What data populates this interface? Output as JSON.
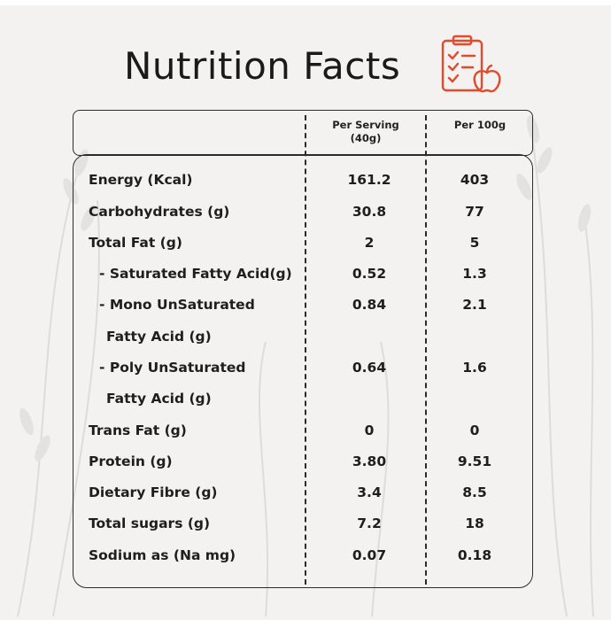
{
  "title": "Nutrition Facts",
  "icons": {
    "title_icon": "checklist-apple-icon"
  },
  "colors": {
    "accent": "#e14a2b",
    "background": "#f3f2f0",
    "line": "#2b2b2b"
  },
  "columns": {
    "per_serving_line1": "Per Serving",
    "per_serving_line2": "(40g)",
    "per_100g": "Per 100g"
  },
  "rows": [
    {
      "label": "Energy (Kcal)",
      "serving": "161.2",
      "per100": "403"
    },
    {
      "label": "Carbohydrates (g)",
      "serving": "30.8",
      "per100": "77"
    },
    {
      "label": "Total Fat (g)",
      "serving": "2",
      "per100": "5"
    },
    {
      "label": "- Saturated Fatty Acid(g)",
      "serving": "0.52",
      "per100": "1.3"
    },
    {
      "label": "- Mono UnSaturated",
      "label2": "Fatty Acid (g)",
      "serving": "0.84",
      "per100": "2.1"
    },
    {
      "label": "- Poly UnSaturated",
      "label2": "Fatty Acid (g)",
      "serving": "0.64",
      "per100": "1.6"
    },
    {
      "label": "Trans Fat (g)",
      "serving": "0",
      "per100": "0"
    },
    {
      "label": "Protein (g)",
      "serving": "3.80",
      "per100": "9.51"
    },
    {
      "label": "Dietary Fibre (g)",
      "serving": "3.4",
      "per100": "8.5"
    },
    {
      "label": "Total sugars (g)",
      "serving": "7.2",
      "per100": "18"
    },
    {
      "label": "Sodium as (Na mg)",
      "serving": "0.07",
      "per100": "0.18"
    }
  ]
}
